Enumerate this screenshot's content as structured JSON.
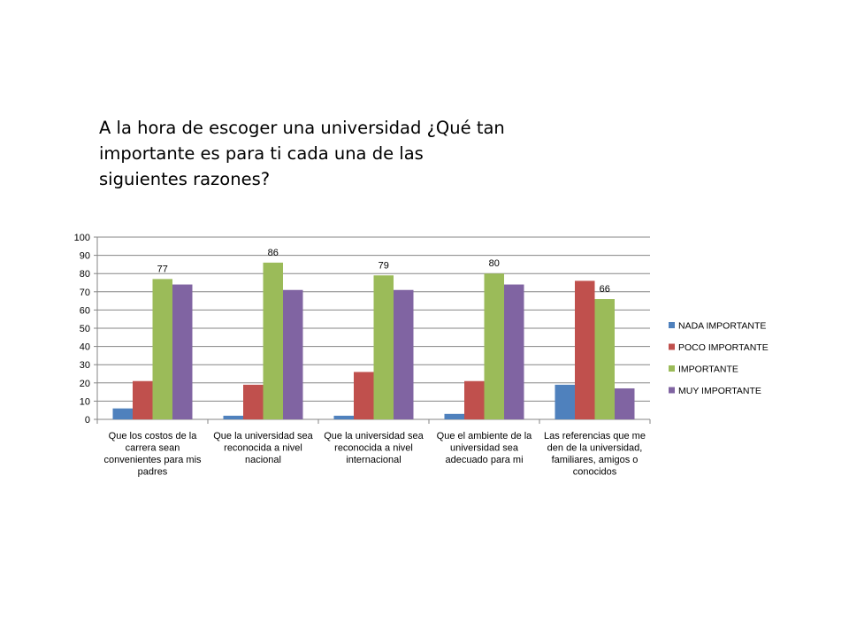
{
  "slide": {
    "title": "A la hora de escoger una universidad ¿Qué tan importante es para ti cada una de las siguientes razones?"
  },
  "chart_data": {
    "type": "bar",
    "title": "",
    "xlabel": "",
    "ylabel": "",
    "ylim": [
      0,
      100
    ],
    "yticks": [
      0,
      10,
      20,
      30,
      40,
      50,
      60,
      70,
      80,
      90,
      100
    ],
    "grid": true,
    "legend_position": "right",
    "categories": [
      [
        "Que los costos de la",
        "carrera sean",
        "convenientes para mis",
        "padres"
      ],
      [
        "Que la universidad sea",
        "reconocida a nivel",
        "nacional"
      ],
      [
        "Que la universidad sea",
        "reconocida a nivel",
        "internacional"
      ],
      [
        "Que el ambiente de la",
        "universidad sea",
        "adecuado para mi"
      ],
      [
        "Las referencias que me",
        "den de la universidad,",
        "familiares, amigos o",
        "conocidos"
      ]
    ],
    "series": [
      {
        "name": "NADA IMPORTANTE",
        "color": "#4F81BD",
        "values": [
          6,
          2,
          2,
          3,
          19
        ]
      },
      {
        "name": "POCO IMPORTANTE",
        "color": "#C0504D",
        "values": [
          21,
          19,
          26,
          21,
          76
        ]
      },
      {
        "name": "IMPORTANTE",
        "color": "#9BBB59",
        "values": [
          77,
          86,
          79,
          80,
          66
        ]
      },
      {
        "name": "MUY IMPORTANTE",
        "color": "#8064A2",
        "values": [
          74,
          71,
          71,
          74,
          17
        ]
      }
    ],
    "data_labels": [
      {
        "series": 2,
        "category": 0,
        "text": "77"
      },
      {
        "series": 2,
        "category": 1,
        "text": "86"
      },
      {
        "series": 2,
        "category": 2,
        "text": "79"
      },
      {
        "series": 2,
        "category": 3,
        "text": "80"
      },
      {
        "series": 2,
        "category": 4,
        "text": "66"
      }
    ]
  }
}
